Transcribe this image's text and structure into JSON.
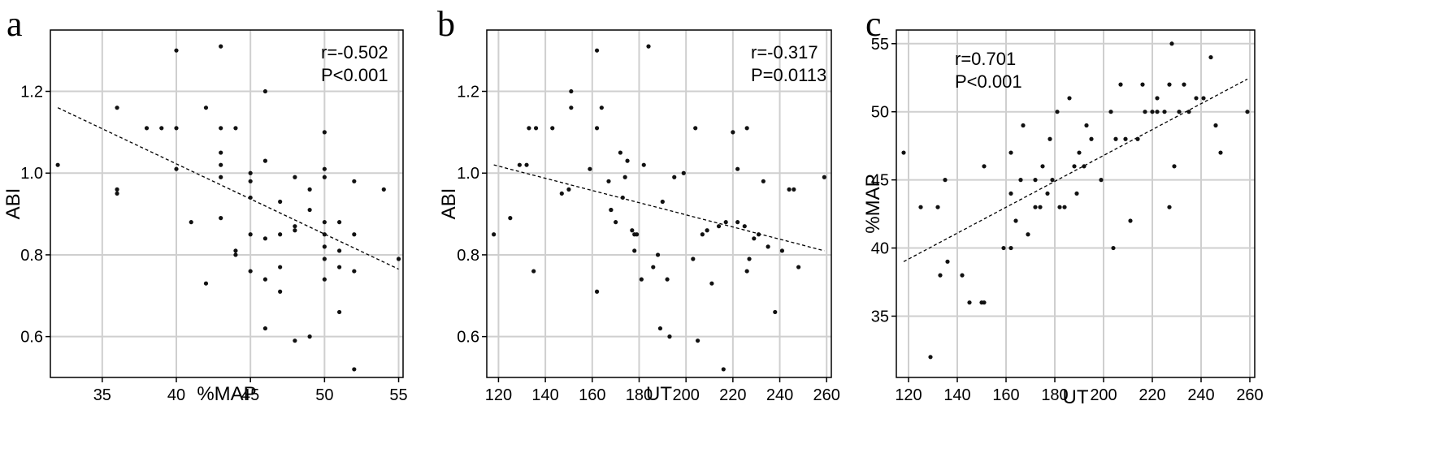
{
  "chart_data": [
    {
      "type": "scatter",
      "panel": "a",
      "xlabel": "%MAP",
      "ylabel": "ABI",
      "xlim": [
        31.5,
        55.3
      ],
      "ylim": [
        0.5,
        1.35
      ],
      "xticks": [
        35,
        40,
        45,
        50,
        55
      ],
      "yticks": [
        0.6,
        0.8,
        1.0,
        1.2
      ],
      "xtick_labels": [
        "35",
        "40",
        "45",
        "50",
        "55"
      ],
      "ytick_labels": [
        "0.6",
        "0.8",
        "1.0",
        "1.2"
      ],
      "grid": true,
      "annotations": [
        "r=-0.502",
        "P<0.001"
      ],
      "trendline": [
        [
          32,
          1.16
        ],
        [
          55,
          0.765
        ]
      ],
      "points": [
        [
          32,
          1.02
        ],
        [
          36,
          1.16
        ],
        [
          36,
          0.96
        ],
        [
          36,
          0.95
        ],
        [
          38,
          1.11
        ],
        [
          39,
          1.11
        ],
        [
          40,
          1.3
        ],
        [
          40,
          1.11
        ],
        [
          40,
          1.01
        ],
        [
          41,
          0.88
        ],
        [
          42,
          1.16
        ],
        [
          42,
          0.73
        ],
        [
          43,
          1.31
        ],
        [
          43,
          1.11
        ],
        [
          43,
          1.05
        ],
        [
          43,
          1.02
        ],
        [
          43,
          0.99
        ],
        [
          43,
          0.89
        ],
        [
          44,
          1.11
        ],
        [
          44,
          0.81
        ],
        [
          44,
          0.8
        ],
        [
          45,
          1.0
        ],
        [
          45,
          0.98
        ],
        [
          45,
          0.94
        ],
        [
          45,
          0.85
        ],
        [
          45,
          0.76
        ],
        [
          46,
          1.2
        ],
        [
          46,
          1.03
        ],
        [
          46,
          0.84
        ],
        [
          46,
          0.74
        ],
        [
          46,
          0.62
        ],
        [
          47,
          0.93
        ],
        [
          47,
          0.85
        ],
        [
          47,
          0.77
        ],
        [
          47,
          0.71
        ],
        [
          48,
          0.99
        ],
        [
          48,
          0.87
        ],
        [
          48,
          0.86
        ],
        [
          48,
          0.59
        ],
        [
          49,
          0.96
        ],
        [
          49,
          0.91
        ],
        [
          49,
          0.6
        ],
        [
          50,
          1.1
        ],
        [
          50,
          1.01
        ],
        [
          50,
          0.99
        ],
        [
          50,
          0.88
        ],
        [
          50,
          0.85
        ],
        [
          50,
          0.82
        ],
        [
          50,
          0.79
        ],
        [
          50,
          0.74
        ],
        [
          51,
          0.88
        ],
        [
          51,
          0.81
        ],
        [
          51,
          0.77
        ],
        [
          51,
          0.66
        ],
        [
          52,
          0.98
        ],
        [
          52,
          0.85
        ],
        [
          52,
          0.76
        ],
        [
          52,
          0.52
        ],
        [
          54,
          0.96
        ],
        [
          55,
          0.79
        ]
      ]
    },
    {
      "type": "scatter",
      "panel": "b",
      "xlabel": "UT",
      "ylabel": "ABI",
      "xlim": [
        115,
        262
      ],
      "ylim": [
        0.5,
        1.35
      ],
      "xticks": [
        120,
        140,
        160,
        180,
        200,
        220,
        240,
        260
      ],
      "yticks": [
        0.6,
        0.8,
        1.0,
        1.2
      ],
      "xtick_labels": [
        "120",
        "140",
        "160",
        "180",
        "200",
        "220",
        "240",
        "260"
      ],
      "ytick_labels": [
        "0.6",
        "0.8",
        "1.0",
        "1.2"
      ],
      "grid": true,
      "annotations": [
        "r=-0.317",
        "P=0.0113"
      ],
      "trendline": [
        [
          118,
          1.02
        ],
        [
          259,
          0.81
        ]
      ],
      "points": [
        [
          118,
          0.85
        ],
        [
          125,
          0.89
        ],
        [
          129,
          1.02
        ],
        [
          132,
          1.02
        ],
        [
          133,
          1.11
        ],
        [
          135,
          0.76
        ],
        [
          136,
          1.11
        ],
        [
          143,
          1.11
        ],
        [
          147,
          0.95
        ],
        [
          150,
          0.96
        ],
        [
          151,
          1.2
        ],
        [
          151,
          1.16
        ],
        [
          159,
          1.01
        ],
        [
          162,
          1.3
        ],
        [
          162,
          1.11
        ],
        [
          162,
          0.71
        ],
        [
          164,
          1.16
        ],
        [
          167,
          0.98
        ],
        [
          168,
          0.91
        ],
        [
          168,
          0.91
        ],
        [
          170,
          0.88
        ],
        [
          172,
          1.05
        ],
        [
          173,
          0.94
        ],
        [
          174,
          0.99
        ],
        [
          175,
          1.03
        ],
        [
          177,
          0.86
        ],
        [
          178,
          0.81
        ],
        [
          178,
          0.85
        ],
        [
          179,
          0.85
        ],
        [
          181,
          0.74
        ],
        [
          182,
          1.02
        ],
        [
          184,
          1.31
        ],
        [
          186,
          0.77
        ],
        [
          188,
          0.8
        ],
        [
          189,
          0.62
        ],
        [
          190,
          0.93
        ],
        [
          192,
          0.74
        ],
        [
          193,
          0.6
        ],
        [
          195,
          0.99
        ],
        [
          199,
          1.0
        ],
        [
          203,
          0.79
        ],
        [
          204,
          1.11
        ],
        [
          205,
          0.59
        ],
        [
          207,
          0.85
        ],
        [
          209,
          0.86
        ],
        [
          211,
          0.73
        ],
        [
          214,
          0.87
        ],
        [
          216,
          0.52
        ],
        [
          217,
          0.88
        ],
        [
          220,
          1.1
        ],
        [
          222,
          0.88
        ],
        [
          222,
          1.01
        ],
        [
          225,
          0.87
        ],
        [
          226,
          1.11
        ],
        [
          226,
          0.76
        ],
        [
          227,
          0.79
        ],
        [
          229,
          0.84
        ],
        [
          231,
          0.85
        ],
        [
          233,
          0.98
        ],
        [
          235,
          0.82
        ],
        [
          238,
          0.66
        ],
        [
          241,
          0.81
        ],
        [
          244,
          0.96
        ],
        [
          246,
          0.96
        ],
        [
          248,
          0.77
        ],
        [
          259,
          0.99
        ]
      ]
    },
    {
      "type": "scatter",
      "panel": "c",
      "xlabel": "UT",
      "ylabel": "%MAP",
      "xlim": [
        115,
        262
      ],
      "ylim": [
        30.5,
        56.0
      ],
      "xticks": [
        120,
        140,
        160,
        180,
        200,
        220,
        240,
        260
      ],
      "yticks": [
        35,
        40,
        45,
        50,
        55
      ],
      "xtick_labels": [
        "120",
        "140",
        "160",
        "180",
        "200",
        "220",
        "240",
        "260"
      ],
      "ytick_labels": [
        "35",
        "40",
        "45",
        "50",
        "55"
      ],
      "grid": true,
      "annotations": [
        "r=0.701",
        "P<0.001"
      ],
      "trendline": [
        [
          118,
          39.0
        ],
        [
          259,
          52.4
        ]
      ],
      "points": [
        [
          118,
          47
        ],
        [
          125,
          43
        ],
        [
          129,
          32
        ],
        [
          132,
          43
        ],
        [
          133,
          38
        ],
        [
          135,
          45
        ],
        [
          136,
          39
        ],
        [
          142,
          38
        ],
        [
          145,
          36
        ],
        [
          150,
          36
        ],
        [
          151,
          36
        ],
        [
          151,
          46
        ],
        [
          159,
          40
        ],
        [
          162,
          40
        ],
        [
          162,
          44
        ],
        [
          162,
          47
        ],
        [
          164,
          42
        ],
        [
          166,
          45
        ],
        [
          167,
          49
        ],
        [
          169,
          41
        ],
        [
          172,
          45
        ],
        [
          172,
          43
        ],
        [
          174,
          43
        ],
        [
          175,
          46
        ],
        [
          177,
          44
        ],
        [
          178,
          48
        ],
        [
          179,
          45
        ],
        [
          181,
          50
        ],
        [
          182,
          43
        ],
        [
          184,
          43
        ],
        [
          186,
          51
        ],
        [
          188,
          46
        ],
        [
          189,
          44
        ],
        [
          190,
          47
        ],
        [
          192,
          46
        ],
        [
          193,
          49
        ],
        [
          195,
          48
        ],
        [
          199,
          45
        ],
        [
          203,
          50
        ],
        [
          204,
          40
        ],
        [
          205,
          48
        ],
        [
          207,
          52
        ],
        [
          209,
          48
        ],
        [
          211,
          42
        ],
        [
          214,
          48
        ],
        [
          216,
          52
        ],
        [
          217,
          50
        ],
        [
          220,
          50
        ],
        [
          222,
          51
        ],
        [
          222,
          50
        ],
        [
          225,
          50
        ],
        [
          227,
          52
        ],
        [
          227,
          43
        ],
        [
          228,
          55
        ],
        [
          229,
          46
        ],
        [
          231,
          50
        ],
        [
          233,
          52
        ],
        [
          235,
          50
        ],
        [
          238,
          51
        ],
        [
          241,
          51
        ],
        [
          244,
          54
        ],
        [
          246,
          49
        ],
        [
          248,
          47
        ],
        [
          259,
          50
        ]
      ]
    }
  ]
}
